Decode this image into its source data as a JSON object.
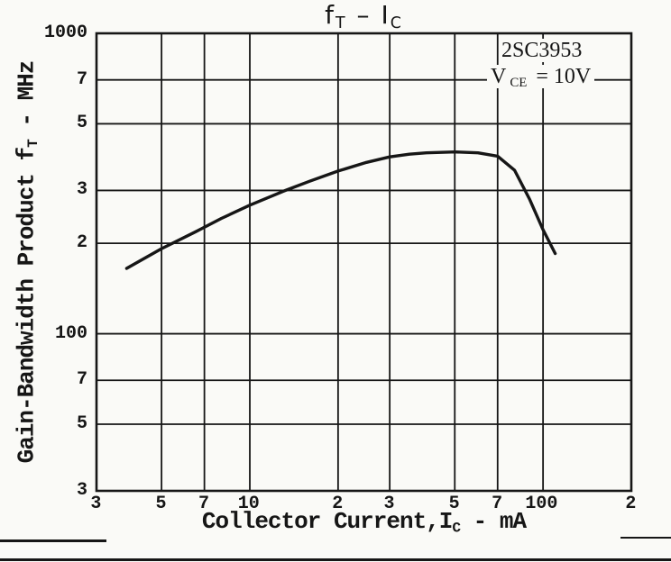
{
  "chart_data": {
    "type": "line",
    "title": {
      "text": "fT – IC",
      "main1": "f",
      "sub1": "T",
      "sep": " – ",
      "main2": "I",
      "sub2": "C"
    },
    "xlabel": {
      "text": "Collector Current, IC - mA",
      "pre": "Collector Current,I",
      "sub": "C",
      "post": " - mA"
    },
    "ylabel": {
      "text": "Gain-Bandwidth Product fT - MHz",
      "pre": "Gain-Bandwidth Product f",
      "sub": "T",
      "post": " - MHz"
    },
    "annotation": {
      "device": "2SC3953",
      "vce_pre": "V",
      "vce_sub": "CE",
      "vce_post": " = 10V"
    },
    "x_scale": "log",
    "y_scale": "log",
    "xlim": [
      3,
      200
    ],
    "ylim": [
      30,
      1000
    ],
    "grid": true,
    "legend": "none",
    "line_color": "#161616",
    "x_gridlines": [
      3,
      5,
      7,
      10,
      20,
      30,
      50,
      70,
      100,
      200
    ],
    "y_gridlines": [
      30,
      50,
      70,
      100,
      200,
      300,
      500,
      700,
      1000
    ],
    "x_ticks": [
      {
        "value": 3,
        "label": "3"
      },
      {
        "value": 5,
        "label": "5"
      },
      {
        "value": 7,
        "label": "7"
      },
      {
        "value": 10,
        "label": "10"
      },
      {
        "value": 20,
        "label": "2"
      },
      {
        "value": 30,
        "label": "3"
      },
      {
        "value": 50,
        "label": "5"
      },
      {
        "value": 70,
        "label": "7"
      },
      {
        "value": 100,
        "label": "100"
      },
      {
        "value": 200,
        "label": "2"
      }
    ],
    "y_ticks": [
      {
        "value": 1000,
        "label": "1000"
      },
      {
        "value": 700,
        "label": "7"
      },
      {
        "value": 500,
        "label": "5"
      },
      {
        "value": 300,
        "label": "3"
      },
      {
        "value": 200,
        "label": "2"
      },
      {
        "value": 100,
        "label": "100"
      },
      {
        "value": 70,
        "label": "7"
      },
      {
        "value": 50,
        "label": "5"
      },
      {
        "value": 30,
        "label": "3"
      }
    ],
    "series": [
      {
        "name": "fT vs IC (VCE=10V)",
        "x": [
          3.8,
          5,
          6.5,
          8,
          10,
          13,
          16,
          20,
          25,
          30,
          35,
          40,
          50,
          60,
          70,
          80,
          90,
          100,
          110
        ],
        "y": [
          165,
          192,
          218,
          242,
          268,
          298,
          322,
          348,
          372,
          388,
          396,
          400,
          403,
          400,
          390,
          350,
          280,
          222,
          185
        ]
      }
    ]
  }
}
